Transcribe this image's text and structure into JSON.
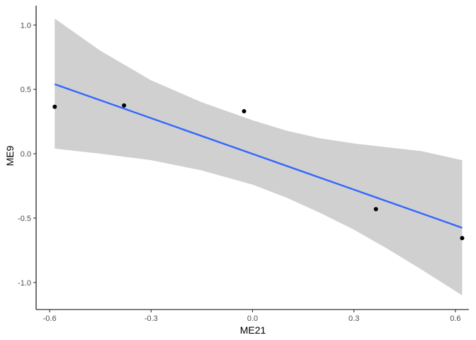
{
  "chart_data": {
    "type": "scatter",
    "title": "",
    "xlabel": "ME21",
    "ylabel": "ME9",
    "xlim": [
      -0.64,
      0.64
    ],
    "ylim": [
      -1.21,
      1.15
    ],
    "x_ticks": [
      -0.6,
      -0.3,
      0.0,
      0.3,
      0.6
    ],
    "x_tick_labels": [
      "-0.6",
      "-0.3",
      "0.0",
      "0.3",
      "0.6"
    ],
    "y_ticks": [
      1.0,
      0.5,
      0.0,
      -0.5,
      -1.0
    ],
    "y_tick_labels": [
      "1.0",
      "0.5",
      "0.0",
      "-0.5",
      "-1.0"
    ],
    "grid": false,
    "legend": "none",
    "points": [
      {
        "x": -0.585,
        "y": 0.365
      },
      {
        "x": -0.38,
        "y": 0.375
      },
      {
        "x": -0.025,
        "y": 0.33
      },
      {
        "x": 0.365,
        "y": -0.43
      },
      {
        "x": 0.62,
        "y": -0.655
      }
    ],
    "fit_line": {
      "x": [
        -0.585,
        0.62
      ],
      "y": [
        0.54,
        -0.575
      ]
    },
    "confidence_band": {
      "x": [
        -0.585,
        -0.45,
        -0.3,
        -0.15,
        0.0,
        0.1,
        0.2,
        0.3,
        0.4,
        0.5,
        0.62
      ],
      "upper": [
        1.05,
        0.8,
        0.57,
        0.4,
        0.26,
        0.18,
        0.12,
        0.08,
        0.05,
        0.02,
        -0.05
      ],
      "lower": [
        0.04,
        0.0,
        -0.05,
        -0.13,
        -0.24,
        -0.34,
        -0.46,
        -0.59,
        -0.74,
        -0.9,
        -1.1
      ]
    },
    "colors": {
      "point": "#000000",
      "fit_line": "#3366ff",
      "band": "#d0d0d0"
    }
  }
}
